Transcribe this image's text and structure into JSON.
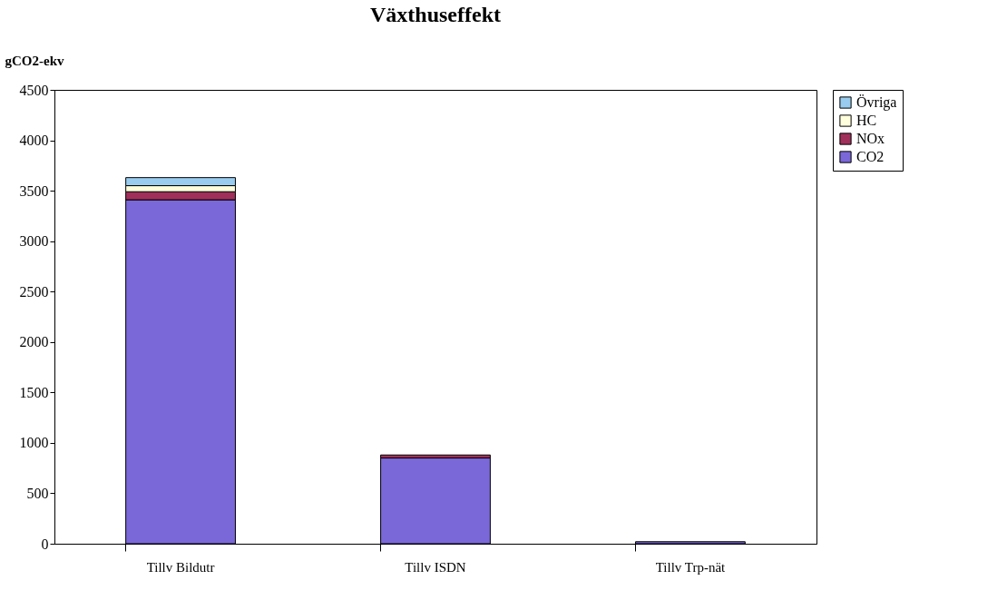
{
  "chart_data": {
    "type": "bar",
    "title": "Växthuseffekt",
    "ylabel": "gCO2-ekv",
    "categories": [
      "Tillv Bildutr",
      "Tillv ISDN",
      "Tillv Trp-nät"
    ],
    "stacked": true,
    "series": [
      {
        "name": "CO2",
        "color": "#7b68d8",
        "values": [
          3410,
          850,
          20
        ]
      },
      {
        "name": "NOx",
        "color": "#a0305a",
        "values": [
          80,
          30,
          null
        ]
      },
      {
        "name": "HC",
        "color": "#ffffdd",
        "values": [
          60,
          null,
          null
        ]
      },
      {
        "name": "Övriga",
        "color": "#99ccee",
        "values": [
          80,
          null,
          null
        ]
      }
    ],
    "ylim": [
      0,
      4500
    ],
    "yticks": [
      0,
      500,
      1000,
      1500,
      2000,
      2500,
      3000,
      3500,
      4000,
      4500
    ],
    "grid": false,
    "legend": "right"
  }
}
